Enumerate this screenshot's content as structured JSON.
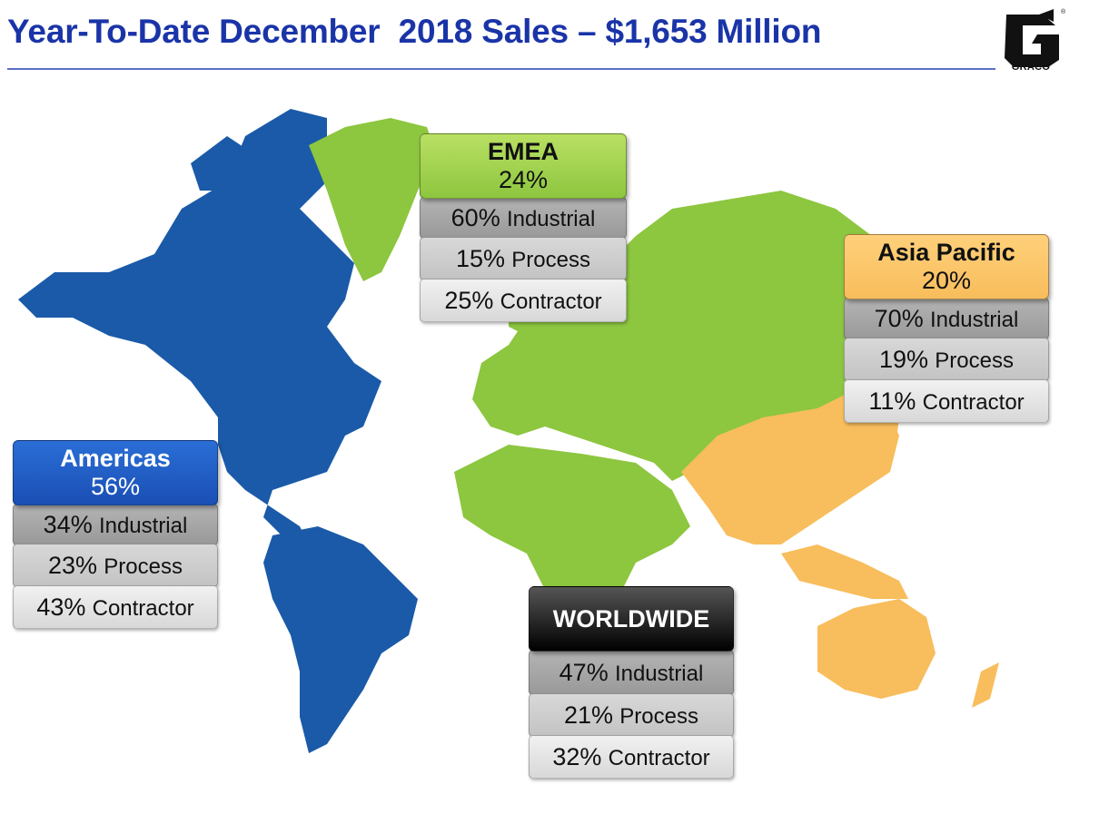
{
  "title": "Year-To-Date December  2018 Sales – $1,653 Million",
  "logo": {
    "text": "GRACO",
    "icon": "graco-g-logo-icon"
  },
  "colors": {
    "americas": "#1a5aa8",
    "emea": "#8dc63f",
    "asia": "#f8bd5c",
    "title": "#1a34a8"
  },
  "regions": {
    "emea": {
      "name": "EMEA",
      "share": "24%",
      "rows": [
        {
          "pct": "60%",
          "label": "Industrial"
        },
        {
          "pct": "15%",
          "label": "Process"
        },
        {
          "pct": "25%",
          "label": "Contractor"
        }
      ]
    },
    "asia": {
      "name": "Asia Pacific",
      "share": "20%",
      "rows": [
        {
          "pct": "70%",
          "label": "Industrial"
        },
        {
          "pct": "19%",
          "label": "Process"
        },
        {
          "pct": "11%",
          "label": "Contractor"
        }
      ]
    },
    "americas": {
      "name": "Americas",
      "share": "56%",
      "rows": [
        {
          "pct": "34%",
          "label": "Industrial"
        },
        {
          "pct": "23%",
          "label": "Process"
        },
        {
          "pct": "43%",
          "label": "Contractor"
        }
      ]
    },
    "worldwide": {
      "name": "WORLDWIDE",
      "rows": [
        {
          "pct": "47%",
          "label": "Industrial"
        },
        {
          "pct": "21%",
          "label": "Process"
        },
        {
          "pct": "32%",
          "label": "Contractor"
        }
      ]
    }
  }
}
